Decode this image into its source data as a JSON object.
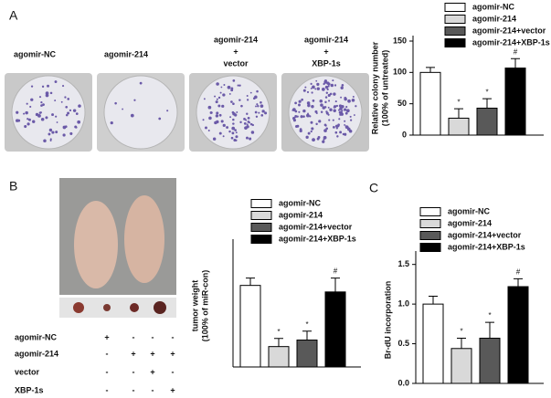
{
  "panel_labels": [
    "A",
    "B",
    "C"
  ],
  "plate_labels": [
    [
      "agomir-NC"
    ],
    [
      "agomir-214"
    ],
    [
      "agomir-214",
      "+",
      "vector"
    ],
    [
      "agomir-214",
      "+",
      "XBP-1s"
    ]
  ],
  "treatments": [
    {
      "name": "agomir-NC",
      "marks": [
        "+",
        "-",
        "-",
        "-"
      ]
    },
    {
      "name": "agomir-214",
      "marks": [
        "-",
        "+",
        "+",
        "+"
      ]
    },
    {
      "name": "vector",
      "marks": [
        "-",
        "-",
        "+",
        "-"
      ]
    },
    {
      "name": "XBP-1s",
      "marks": [
        "-",
        "-",
        "-",
        "+"
      ]
    }
  ],
  "chart_data": [
    {
      "type": "bar",
      "ylabel": [
        "Relative colony number",
        "(100% of untreated)"
      ],
      "ylim": [
        0,
        150
      ],
      "yticks": [
        0,
        50,
        100,
        150
      ],
      "series": [
        {
          "name": "agomir-NC",
          "color": "#ffffff",
          "values": [
            100
          ],
          "errors": [
            8
          ]
        },
        {
          "name": "agomir-214",
          "color": "#d9d9d9",
          "values": [
            27
          ],
          "errors": [
            15
          ],
          "annotation": "*"
        },
        {
          "name": "agomir-214+vector",
          "color": "#595959",
          "values": [
            43
          ],
          "errors": [
            15
          ],
          "annotation": "*"
        },
        {
          "name": "agomir-214+XBP-1s",
          "color": "#000000",
          "values": [
            107
          ],
          "errors": [
            15
          ],
          "annotation": "#"
        }
      ]
    },
    {
      "type": "bar",
      "ylabel": [
        "tumor weight",
        "(100% of miR-con)"
      ],
      "ylim": [
        0,
        150
      ],
      "series": [
        {
          "name": "agomir-NC",
          "color": "#ffffff",
          "values": [
            100
          ],
          "errors": [
            9
          ]
        },
        {
          "name": "agomir-214",
          "color": "#d9d9d9",
          "values": [
            25
          ],
          "errors": [
            10
          ],
          "annotation": "*"
        },
        {
          "name": "agomir-214+vector",
          "color": "#595959",
          "values": [
            33
          ],
          "errors": [
            11
          ],
          "annotation": "*"
        },
        {
          "name": "agomir-214+XBP-1s",
          "color": "#000000",
          "values": [
            92
          ],
          "errors": [
            17
          ],
          "annotation": "#"
        }
      ]
    },
    {
      "type": "bar",
      "ylabel": [
        "Br-dU incorporation"
      ],
      "ylim": [
        0,
        1.6
      ],
      "yticks": [
        {
          "value": 0,
          "label": "0.0"
        },
        0.5,
        {
          "value": 1,
          "label": "1.0"
        },
        1.5
      ],
      "series": [
        {
          "name": "agomir-NC",
          "color": "#ffffff",
          "values": [
            1.0
          ],
          "errors": [
            0.1
          ]
        },
        {
          "name": "agomir-214",
          "color": "#d9d9d9",
          "values": [
            0.44
          ],
          "errors": [
            0.13
          ],
          "annotation": "*"
        },
        {
          "name": "agomir-214+vector",
          "color": "#595959",
          "values": [
            0.57
          ],
          "errors": [
            0.2
          ],
          "annotation": "*"
        },
        {
          "name": "agomir-214+XBP-1s",
          "color": "#000000",
          "values": [
            1.22
          ],
          "errors": [
            0.1
          ],
          "annotation": "#"
        }
      ]
    }
  ]
}
